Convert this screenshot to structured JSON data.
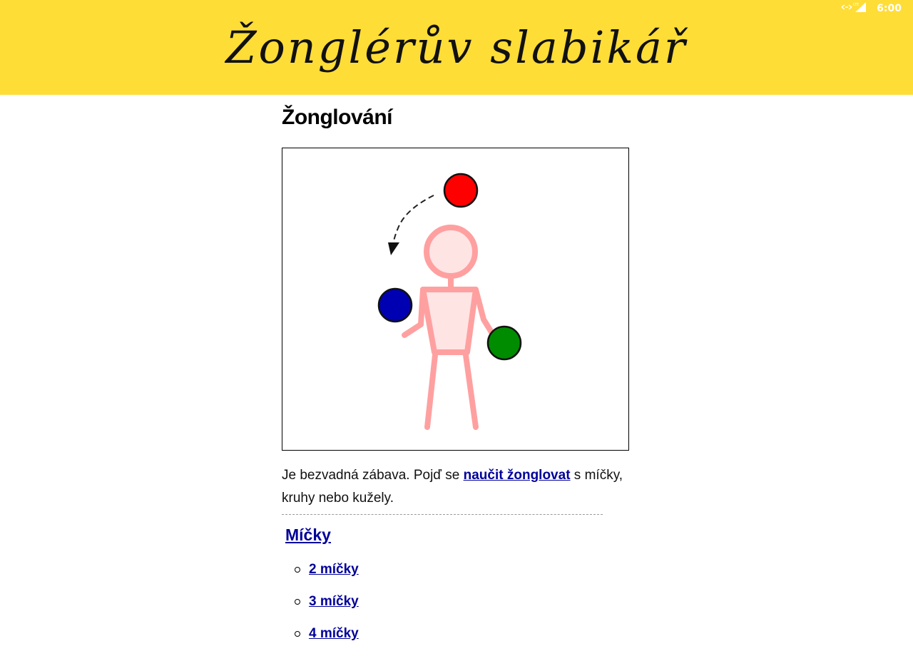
{
  "status_bar": {
    "network_icon": "data-transfer-icon",
    "network_type": "LTE",
    "signal_icon": "cell-signal-icon",
    "time": "6:00"
  },
  "header": {
    "banner_title": "Žonglérův slabikář",
    "background_color": "#ffdd37"
  },
  "page": {
    "title": "Žonglování",
    "illustration": {
      "description_icon": "juggler-illustration",
      "ball_colors": [
        "#ff0000",
        "#0000b3",
        "#008c00"
      ],
      "figure_color": "#ffa0a0"
    },
    "intro": {
      "before_link": "Je bezvadná zábava. Pojď se ",
      "link_text": "naučit žonglovat",
      "after_link": " s míčky, kruhy nebo kužely."
    },
    "section": {
      "heading": "Míčky",
      "items": [
        {
          "label": "2 míčky"
        },
        {
          "label": "3 míčky"
        },
        {
          "label": "4 míčky"
        }
      ]
    },
    "link_color": "#000099"
  }
}
